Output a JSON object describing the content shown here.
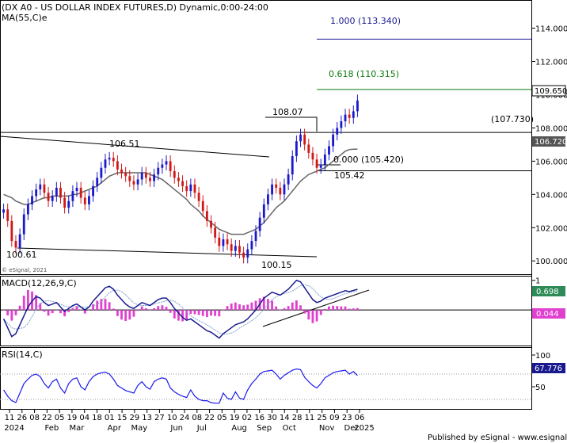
{
  "chart_data": {
    "type": "candlestick",
    "title": "(DX A0 - US DOLLAR INDEX FUTURES,D) Dynamic,0:00-24:00",
    "overlay_label": "MA(55,C)e",
    "watermark": "© eSignal, 2021",
    "footer": "Published by eSignal - www.esignal.com",
    "price_axis": {
      "ylim": [
        99.2,
        115.6
      ],
      "ticks": [
        "100.000",
        "102.000",
        "104.000",
        "106.000",
        "108.000",
        "110.000",
        "112.000",
        "114.000"
      ],
      "last_price": "109.650",
      "ma_value": "106.720"
    },
    "annotations": {
      "high_label_1": "106.51",
      "low_label_1": "100.61",
      "low_label_2": "100.15",
      "high_label_2": "108.07",
      "low_label_3": "105.42",
      "fib_100": "1.000 (113.340)",
      "fib_618": "0.618 (110.315)",
      "fib_000": "0.000 (105.420)",
      "level_label": "(107.730)"
    },
    "levels": {
      "fib_100": 113.34,
      "fib_618": 110.315,
      "fib_000": 105.42,
      "resistance": 107.73
    },
    "x_axis": {
      "day_ticks": [
        "11",
        "26",
        "08",
        "22",
        "05",
        "19",
        "04",
        "18",
        "01",
        "15",
        "29",
        "13",
        "27",
        "10",
        "24",
        "08",
        "22",
        "05",
        "19",
        "02",
        "16",
        "30",
        "14",
        "28",
        "11",
        "25",
        "09",
        "23",
        "06"
      ],
      "month_ticks": [
        "2024",
        "Feb",
        "Mar",
        "Apr",
        "May",
        "Jun",
        "Jul",
        "Aug",
        "Sep",
        "Oct",
        "Nov",
        "Dec",
        "2025"
      ]
    },
    "macd": {
      "label": "MACD(12,26,9,C)",
      "ticks": [
        "1"
      ],
      "value_macd": "0.698",
      "value_hist": "0.044",
      "ylim": [
        -1.2,
        1.1
      ]
    },
    "rsi": {
      "label": "RSI(14,C)",
      "ticks": [
        "100",
        "50"
      ],
      "value": "67.776",
      "ylim": [
        15,
        110
      ]
    },
    "series": [
      {
        "name": "close",
        "values": [
          103.1,
          102.4,
          101.2,
          100.8,
          101.6,
          102.8,
          103.4,
          103.9,
          104.3,
          104.6,
          104.1,
          103.6,
          103.9,
          104.4,
          103.8,
          103.2,
          103.6,
          104.2,
          104.4,
          103.8,
          103.4,
          103.9,
          104.5,
          105.0,
          105.6,
          106.1,
          106.2,
          106.0,
          105.5,
          105.3,
          105.1,
          104.8,
          104.6,
          104.9,
          105.3,
          105.0,
          104.8,
          105.2,
          105.6,
          105.8,
          106.0,
          105.4,
          105.0,
          104.8,
          104.5,
          104.2,
          104.6,
          104.1,
          103.6,
          103.0,
          102.4,
          102.0,
          101.4,
          100.9,
          101.3,
          101.0,
          100.6,
          100.9,
          100.5,
          100.2,
          100.7,
          101.2,
          101.8,
          102.6,
          103.4,
          104.0,
          104.6,
          104.4,
          104.0,
          104.6,
          105.2,
          106.3,
          107.2,
          107.6,
          107.0,
          106.5,
          106.1,
          105.6,
          105.8,
          106.4,
          106.9,
          107.6,
          108.0,
          108.4,
          108.8,
          108.6,
          109.0,
          109.65
        ]
      },
      {
        "name": "MA(55,C)e",
        "values": [
          104.0,
          103.9,
          103.8,
          103.6,
          103.5,
          103.4,
          103.4,
          103.5,
          103.6,
          103.7,
          103.8,
          103.8,
          103.9,
          103.9,
          103.9,
          103.9,
          103.9,
          104.0,
          104.0,
          104.1,
          104.2,
          104.3,
          104.4,
          104.5,
          104.7,
          104.9,
          105.1,
          105.2,
          105.3,
          105.3,
          105.3,
          105.3,
          105.3,
          105.3,
          105.3,
          105.3,
          105.2,
          105.1,
          105.0,
          104.9,
          104.7,
          104.5,
          104.3,
          104.1,
          103.9,
          103.7,
          103.4,
          103.2,
          103.0,
          102.7,
          102.5,
          102.3,
          102.1,
          101.9,
          101.8,
          101.7,
          101.6,
          101.6,
          101.6,
          101.6,
          101.7,
          101.8,
          101.9,
          102.1,
          102.3,
          102.6,
          102.9,
          103.2,
          103.4,
          103.6,
          103.9,
          104.2,
          104.5,
          104.8,
          105.0,
          105.2,
          105.3,
          105.4,
          105.5,
          105.6,
          105.8,
          106.0,
          106.2,
          106.4,
          106.6,
          106.7,
          106.72,
          106.72
        ]
      },
      {
        "name": "MACD(12,26,9,C)",
        "values": [
          -0.3,
          -0.6,
          -0.9,
          -0.8,
          -0.5,
          -0.2,
          0.1,
          0.3,
          0.45,
          0.4,
          0.25,
          0.15,
          0.2,
          0.25,
          0.1,
          -0.05,
          0.05,
          0.15,
          0.2,
          0.1,
          0.0,
          0.1,
          0.3,
          0.45,
          0.6,
          0.75,
          0.8,
          0.7,
          0.5,
          0.35,
          0.2,
          0.1,
          0.05,
          0.15,
          0.25,
          0.2,
          0.15,
          0.25,
          0.35,
          0.4,
          0.4,
          0.25,
          0.05,
          -0.1,
          -0.25,
          -0.35,
          -0.3,
          -0.4,
          -0.5,
          -0.6,
          -0.7,
          -0.75,
          -0.85,
          -0.95,
          -0.8,
          -0.7,
          -0.6,
          -0.5,
          -0.45,
          -0.4,
          -0.3,
          -0.15,
          0.0,
          0.2,
          0.4,
          0.5,
          0.6,
          0.55,
          0.5,
          0.6,
          0.7,
          0.85,
          1.0,
          0.95,
          0.75,
          0.55,
          0.35,
          0.25,
          0.3,
          0.4,
          0.45,
          0.5,
          0.55,
          0.6,
          0.65,
          0.62,
          0.66,
          0.698
        ]
      },
      {
        "name": "RSI(14,C)",
        "values": [
          45,
          35,
          28,
          25,
          40,
          55,
          62,
          68,
          70,
          66,
          55,
          48,
          58,
          62,
          48,
          40,
          55,
          62,
          64,
          50,
          45,
          58,
          66,
          70,
          72,
          73,
          70,
          62,
          52,
          48,
          44,
          42,
          40,
          52,
          58,
          50,
          46,
          58,
          62,
          64,
          62,
          48,
          42,
          38,
          35,
          33,
          45,
          35,
          30,
          28,
          28,
          25,
          24,
          24,
          40,
          32,
          30,
          42,
          32,
          30,
          45,
          55,
          62,
          70,
          74,
          75,
          76,
          70,
          62,
          68,
          72,
          76,
          78,
          77,
          65,
          58,
          52,
          48,
          55,
          64,
          68,
          72,
          74,
          75,
          76,
          70,
          74,
          67.776
        ]
      }
    ]
  }
}
